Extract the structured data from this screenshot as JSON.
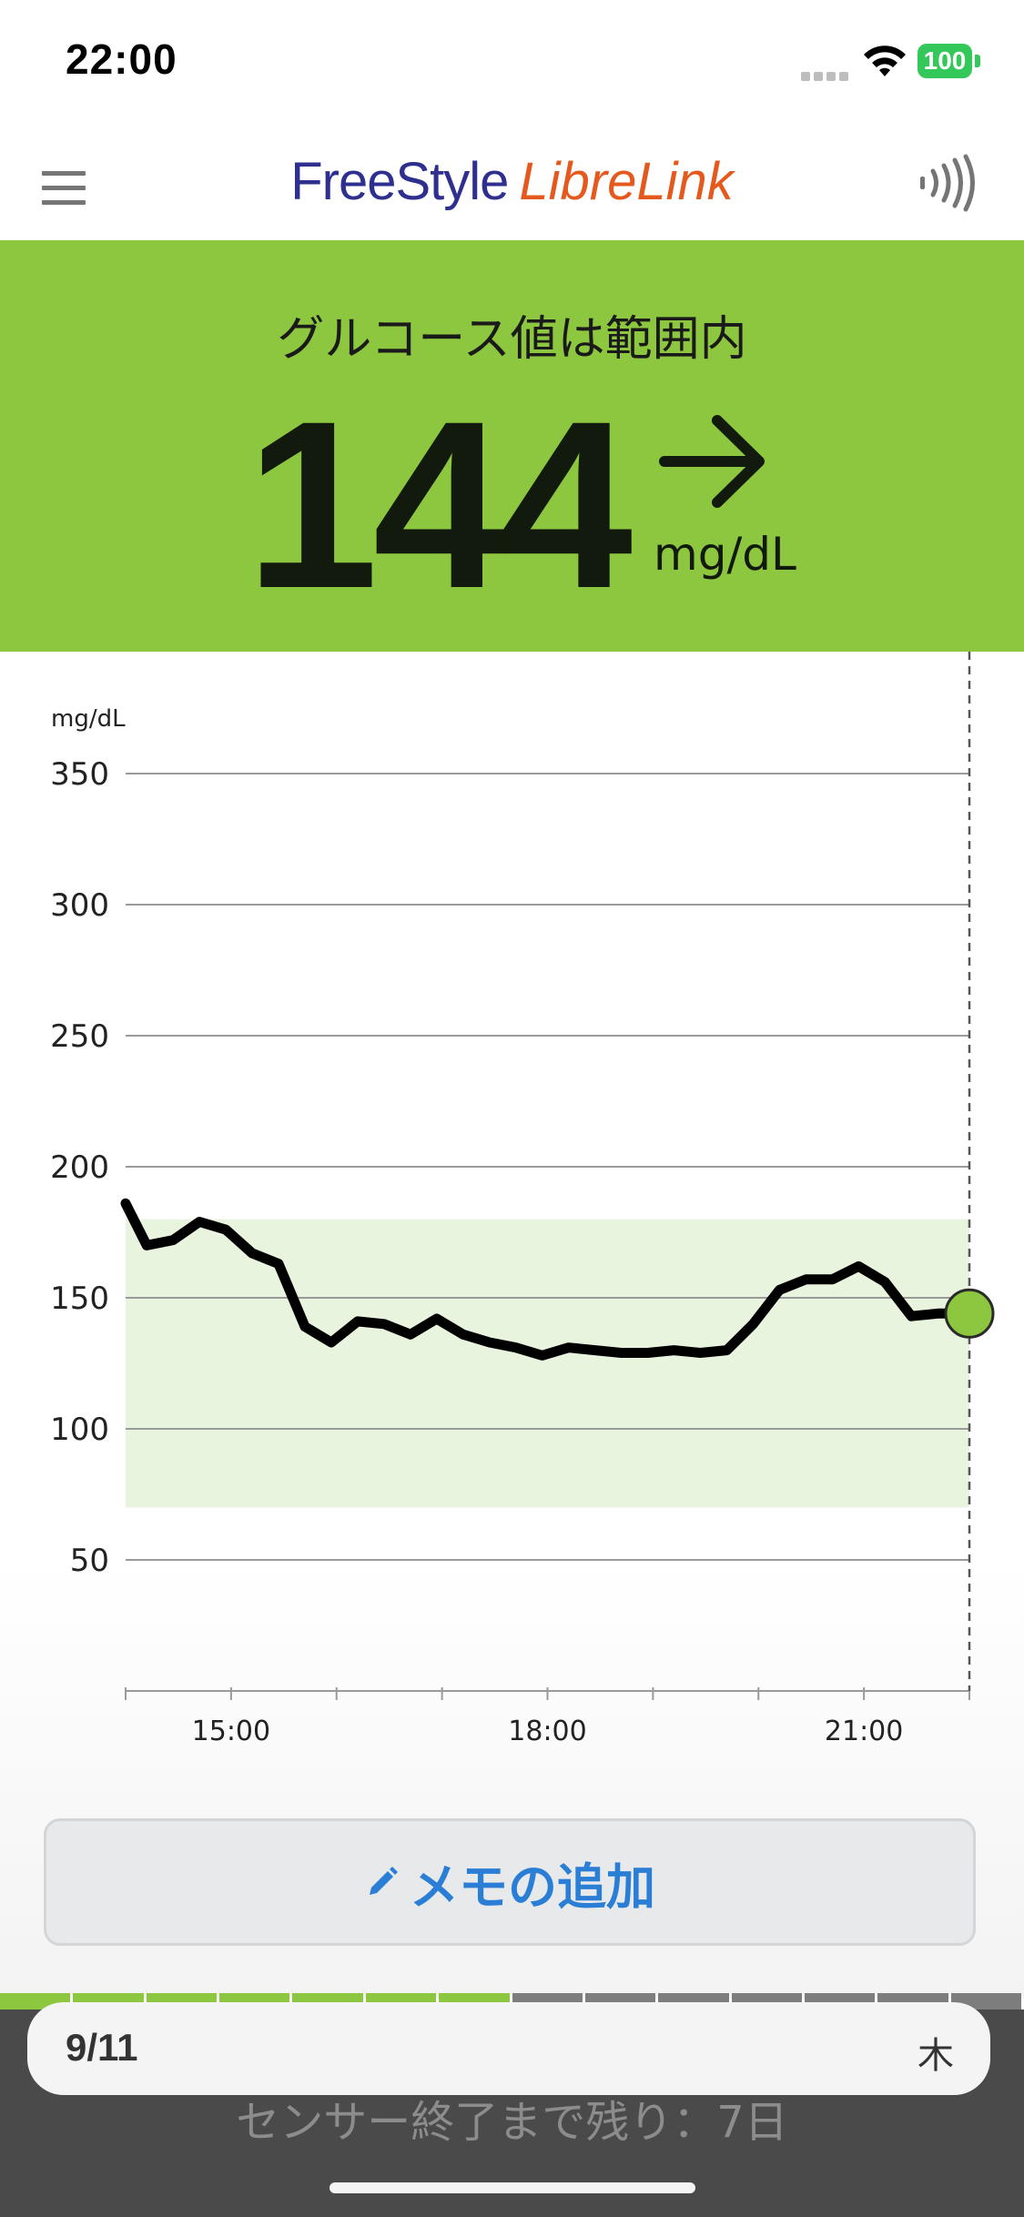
{
  "status_bar": {
    "time": "22:00",
    "battery": "100"
  },
  "app": {
    "logo_part1": "FreeStyle",
    "logo_part2": "LibreLink"
  },
  "icons": {
    "menu": "menu-icon",
    "nfc": "nfc-scan-icon",
    "trend": "arrow-right-icon",
    "memo": "pencil-icon"
  },
  "banner": {
    "status": "グルコース値は範囲内",
    "value": "144",
    "unit": "mg/dL",
    "trend": "steady"
  },
  "colors": {
    "in_range": "#8dc63f",
    "target_band": "#e9f4de",
    "memo_text": "#2a7ed6",
    "logo_free": "#2e2f8e",
    "logo_libre": "#e45a1e"
  },
  "chart_data": {
    "type": "line",
    "ylabel": "mg/dL",
    "yticks": [
      350,
      300,
      250,
      200,
      150,
      100,
      50
    ],
    "ylim": [
      0,
      350
    ],
    "xlim": [
      14.0,
      22.0
    ],
    "xticks": [
      {
        "x": 15,
        "label": "15:00"
      },
      {
        "x": 18,
        "label": "18:00"
      },
      {
        "x": 21,
        "label": "21:00"
      }
    ],
    "minor_xticks": [
      14,
      15,
      16,
      17,
      18,
      19,
      20,
      21,
      22
    ],
    "target_range": [
      70,
      180
    ],
    "current": {
      "x": 22.0,
      "y": 144
    },
    "series": [
      {
        "x": [
          14.0,
          14.2,
          14.45,
          14.7,
          14.95,
          15.2,
          15.45,
          15.7,
          15.95,
          16.2,
          16.45,
          16.7,
          16.95,
          17.2,
          17.45,
          17.7,
          17.95,
          18.2,
          18.45,
          18.7,
          18.95,
          19.2,
          19.45,
          19.7,
          19.95,
          20.2,
          20.45,
          20.7,
          20.95,
          21.2,
          21.45,
          21.7,
          22.0
        ],
        "y": [
          186,
          170,
          172,
          179,
          176,
          167,
          163,
          139,
          133,
          141,
          140,
          136,
          142,
          136,
          133,
          131,
          128,
          131,
          130,
          129,
          129,
          130,
          129,
          130,
          140,
          153,
          157,
          157,
          162,
          156,
          143,
          144,
          144
        ]
      }
    ]
  },
  "memo_button": {
    "label": "メモの追加"
  },
  "sensor": {
    "segments_on": 7,
    "segments_total": 14,
    "remaining": "センサー終了まで残り：7日"
  },
  "date_bar": {
    "date": "9/11",
    "weekday": "木"
  }
}
